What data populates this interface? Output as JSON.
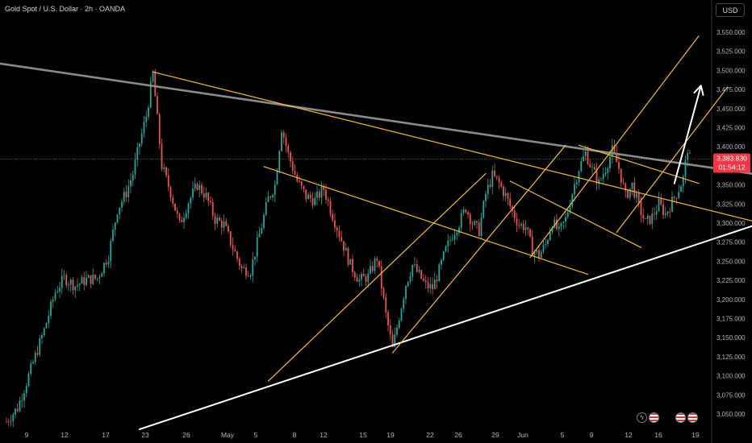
{
  "header": {
    "title": "Gold Spot / U.S. Dollar · 2h · OANDA"
  },
  "currency_button": "USD",
  "price_tag": {
    "price": "3,383.830",
    "countdown": "01:54:12"
  },
  "colors": {
    "up": "#26a69a",
    "down": "#ef5350",
    "channel": "#f5b83d",
    "resistance": "#8a8a8a",
    "support": "#ffffff",
    "arrow": "#ffffff",
    "price_tag": "#f23645"
  },
  "chart_data": {
    "type": "candlestick",
    "title": "Gold Spot / U.S. Dollar · 2h · OANDA",
    "y_ticks": [
      "3,550.000",
      "3,525.000",
      "3,500.000",
      "3,475.000",
      "3,450.000",
      "3,425.000",
      "3,400.000",
      "3,375.000",
      "3,350.000",
      "3,325.000",
      "3,300.000",
      "3,275.000",
      "3,250.000",
      "3,225.000",
      "3,200.000",
      "3,175.000",
      "3,150.000",
      "3,125.000",
      "3,100.000",
      "3,075.000",
      "3,050.000"
    ],
    "y_tick_values": [
      3550,
      3525,
      3500,
      3475,
      3450,
      3425,
      3400,
      3375,
      3350,
      3325,
      3300,
      3275,
      3250,
      3225,
      3200,
      3175,
      3150,
      3125,
      3100,
      3075,
      3050
    ],
    "ylim": [
      3035,
      3565
    ],
    "x_ticks": [
      "9",
      "12",
      "17",
      "23",
      "26",
      "May",
      "5",
      "8",
      "12",
      "15",
      "19",
      "22",
      "26",
      "29",
      "Jun",
      "5",
      "9",
      "12",
      "16",
      "19"
    ],
    "last_price": 3383.83,
    "price_path": [
      {
        "t": 0,
        "p": 3040
      },
      {
        "t": 5,
        "p": 3058
      },
      {
        "t": 10,
        "p": 3100
      },
      {
        "t": 17,
        "p": 3160
      },
      {
        "t": 22,
        "p": 3210
      },
      {
        "t": 26,
        "p": 3228
      },
      {
        "t": 31,
        "p": 3218
      },
      {
        "t": 36,
        "p": 3226
      },
      {
        "t": 41,
        "p": 3228
      },
      {
        "t": 46,
        "p": 3258
      },
      {
        "t": 50,
        "p": 3318
      },
      {
        "t": 54,
        "p": 3340
      },
      {
        "t": 57,
        "p": 3365
      },
      {
        "t": 60,
        "p": 3405
      },
      {
        "t": 63,
        "p": 3440
      },
      {
        "t": 66,
        "p": 3496
      },
      {
        "t": 70,
        "p": 3375
      },
      {
        "t": 74,
        "p": 3340
      },
      {
        "t": 78,
        "p": 3298
      },
      {
        "t": 82,
        "p": 3328
      },
      {
        "t": 86,
        "p": 3350
      },
      {
        "t": 90,
        "p": 3335
      },
      {
        "t": 94,
        "p": 3305
      },
      {
        "t": 98,
        "p": 3298
      },
      {
        "t": 102,
        "p": 3268
      },
      {
        "t": 106,
        "p": 3240
      },
      {
        "t": 110,
        "p": 3238
      },
      {
        "t": 114,
        "p": 3285
      },
      {
        "t": 118,
        "p": 3332
      },
      {
        "t": 121,
        "p": 3350
      },
      {
        "t": 124,
        "p": 3425
      },
      {
        "t": 127,
        "p": 3390
      },
      {
        "t": 131,
        "p": 3355
      },
      {
        "t": 135,
        "p": 3335
      },
      {
        "t": 139,
        "p": 3330
      },
      {
        "t": 143,
        "p": 3345
      },
      {
        "t": 147,
        "p": 3310
      },
      {
        "t": 151,
        "p": 3278
      },
      {
        "t": 155,
        "p": 3245
      },
      {
        "t": 159,
        "p": 3225
      },
      {
        "t": 163,
        "p": 3230
      },
      {
        "t": 167,
        "p": 3255
      },
      {
        "t": 171,
        "p": 3180
      },
      {
        "t": 174,
        "p": 3135
      },
      {
        "t": 177,
        "p": 3178
      },
      {
        "t": 180,
        "p": 3220
      },
      {
        "t": 183,
        "p": 3245
      },
      {
        "t": 186,
        "p": 3232
      },
      {
        "t": 189,
        "p": 3218
      },
      {
        "t": 192,
        "p": 3215
      },
      {
        "t": 195,
        "p": 3238
      },
      {
        "t": 198,
        "p": 3265
      },
      {
        "t": 201,
        "p": 3285
      },
      {
        "t": 204,
        "p": 3300
      },
      {
        "t": 207,
        "p": 3320
      },
      {
        "t": 210,
        "p": 3300
      },
      {
        "t": 213,
        "p": 3290
      },
      {
        "t": 216,
        "p": 3338
      },
      {
        "t": 219,
        "p": 3362
      },
      {
        "t": 222,
        "p": 3352
      },
      {
        "t": 225,
        "p": 3336
      },
      {
        "t": 228,
        "p": 3315
      },
      {
        "t": 231,
        "p": 3298
      },
      {
        "t": 234,
        "p": 3295
      },
      {
        "t": 237,
        "p": 3265
      },
      {
        "t": 240,
        "p": 3258
      },
      {
        "t": 243,
        "p": 3272
      },
      {
        "t": 246,
        "p": 3302
      },
      {
        "t": 249,
        "p": 3288
      },
      {
        "t": 252,
        "p": 3305
      },
      {
        "t": 255,
        "p": 3340
      },
      {
        "t": 258,
        "p": 3372
      },
      {
        "t": 261,
        "p": 3392
      },
      {
        "t": 264,
        "p": 3370
      },
      {
        "t": 267,
        "p": 3352
      },
      {
        "t": 270,
        "p": 3372
      },
      {
        "t": 273,
        "p": 3395
      },
      {
        "t": 276,
        "p": 3372
      },
      {
        "t": 279,
        "p": 3335
      },
      {
        "t": 282,
        "p": 3350
      },
      {
        "t": 285,
        "p": 3322
      },
      {
        "t": 288,
        "p": 3300
      },
      {
        "t": 291,
        "p": 3308
      },
      {
        "t": 294,
        "p": 3325
      },
      {
        "t": 297,
        "p": 3312
      },
      {
        "t": 300,
        "p": 3328
      },
      {
        "t": 303,
        "p": 3345
      },
      {
        "t": 305,
        "p": 3358
      },
      {
        "t": 307,
        "p": 3398
      },
      {
        "t": 308,
        "p": 3383.83
      }
    ],
    "drawings": [
      {
        "name": "resistance-line",
        "color": "#8a8a8a",
        "from": {
          "t": -10,
          "p": 3512
        },
        "to": {
          "t": 340,
          "p": 3363
        }
      },
      {
        "name": "support-line",
        "color": "#ffffff",
        "from": {
          "t": 60,
          "p": 3030
        },
        "to": {
          "t": 340,
          "p": 3300
        }
      },
      {
        "name": "falling-channel-upper",
        "color": "#f5b83d",
        "from": {
          "t": 66,
          "p": 3498
        },
        "to": {
          "t": 340,
          "p": 3300
        }
      },
      {
        "name": "falling-channel-lower",
        "color": "#f5b83d",
        "from": {
          "t": 116,
          "p": 3374
        },
        "to": {
          "t": 262,
          "p": 3233
        }
      },
      {
        "name": "rising-channel-1-upper",
        "color": "#f5b83d",
        "from": {
          "t": 118,
          "p": 3093
        },
        "to": {
          "t": 216,
          "p": 3365
        }
      },
      {
        "name": "rising-channel-1-lower",
        "color": "#f5b83d",
        "from": {
          "t": 174,
          "p": 3130
        },
        "to": {
          "t": 252,
          "p": 3402
        }
      },
      {
        "name": "short-channel-upper",
        "color": "#f5b83d",
        "from": {
          "t": 258,
          "p": 3402
        },
        "to": {
          "t": 312,
          "p": 3352
        }
      },
      {
        "name": "short-channel-lower",
        "color": "#f5b83d",
        "from": {
          "t": 227,
          "p": 3355
        },
        "to": {
          "t": 286,
          "p": 3268
        }
      },
      {
        "name": "rising-channel-2-upper",
        "color": "#f5b83d",
        "from": {
          "t": 236,
          "p": 3255
        },
        "to": {
          "t": 312,
          "p": 3545
        }
      },
      {
        "name": "rising-channel-2-lower",
        "color": "#f5b83d",
        "from": {
          "t": 275,
          "p": 3288
        },
        "to": {
          "t": 325,
          "p": 3478
        }
      },
      {
        "name": "breakout-arrow",
        "color": "#ffffff",
        "from": {
          "t": 301,
          "p": 3352
        },
        "to": {
          "t": 313,
          "p": 3480
        }
      }
    ]
  }
}
